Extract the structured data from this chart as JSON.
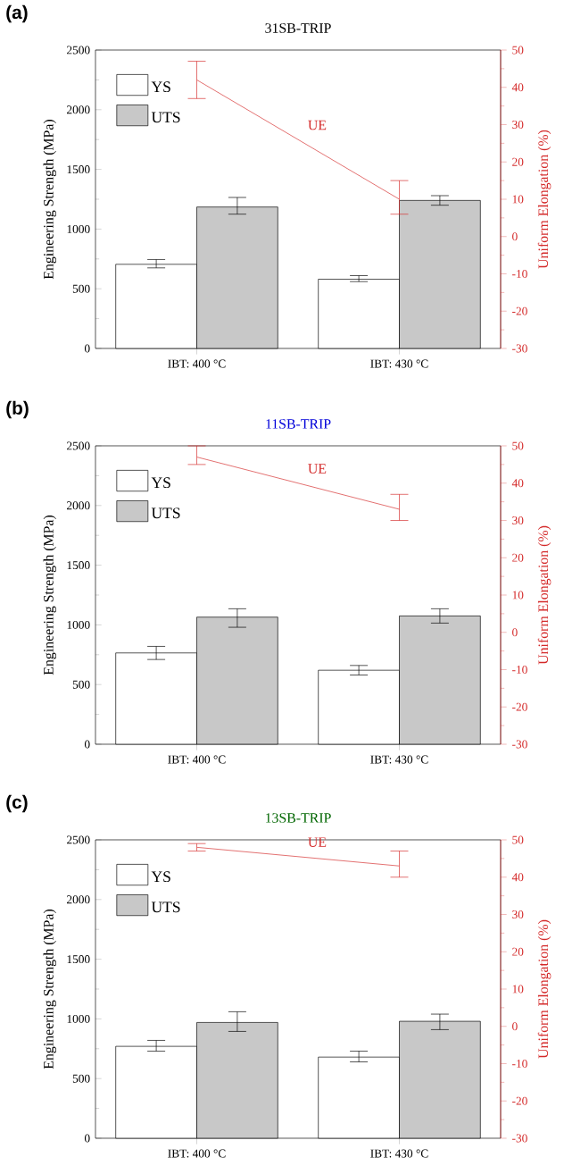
{
  "chart_data": [
    {
      "type": "bar",
      "title": "31SB-TRIP",
      "annotations": [
        "(a)"
      ],
      "ylabel": "Engineering Strength (MPa)",
      "y2label": "Uniform Elongation (%)",
      "categories": [
        "IBT: 400 °C",
        "IBT: 430 °C"
      ],
      "series": [
        {
          "name": "YS",
          "color": "#ffffff",
          "values": [
            705,
            580
          ],
          "errors": [
            [
              675,
              745
            ],
            [
              560,
              610
            ]
          ]
        },
        {
          "name": "UTS",
          "color": "#c8c8c8",
          "values": [
            1185,
            1240
          ],
          "errors": [
            [
              1125,
              1265
            ],
            [
              1200,
              1280
            ]
          ]
        },
        {
          "name": "UE",
          "type": "line",
          "axis": "y2",
          "color": "#d42a2a",
          "values": [
            42,
            10
          ],
          "errors": [
            [
              37,
              47
            ],
            [
              6,
              15
            ]
          ]
        }
      ],
      "ylim": [
        0,
        2500
      ],
      "yticks": [
        0,
        500,
        1000,
        1500,
        2000,
        2500
      ],
      "y2lim": [
        -30,
        50
      ],
      "y2ticks": [
        -30,
        -20,
        -10,
        0,
        10,
        20,
        30,
        40,
        50
      ],
      "legend": "top left"
    },
    {
      "type": "bar",
      "title": "11SB-TRIP",
      "annotations": [
        "(b)"
      ],
      "ylabel": "Engineering Strength (MPa)",
      "y2label": "Uniform Elongation (%)",
      "categories": [
        "IBT: 400 °C",
        "IBT: 430 °C"
      ],
      "series": [
        {
          "name": "YS",
          "color": "#ffffff",
          "values": [
            765,
            620
          ],
          "errors": [
            [
              710,
              820
            ],
            [
              580,
              660
            ]
          ]
        },
        {
          "name": "UTS",
          "color": "#c8c8c8",
          "values": [
            1065,
            1075
          ],
          "errors": [
            [
              980,
              1135
            ],
            [
              1015,
              1135
            ]
          ]
        },
        {
          "name": "UE",
          "type": "line",
          "axis": "y2",
          "color": "#d42a2a",
          "values": [
            47,
            33
          ],
          "errors": [
            [
              45,
              50
            ],
            [
              30,
              37
            ]
          ]
        }
      ],
      "ylim": [
        0,
        2500
      ],
      "yticks": [
        0,
        500,
        1000,
        1500,
        2000,
        2500
      ],
      "y2lim": [
        -30,
        50
      ],
      "y2ticks": [
        -30,
        -20,
        -10,
        0,
        10,
        20,
        30,
        40,
        50
      ],
      "legend": "top left"
    },
    {
      "type": "bar",
      "title": "13SB-TRIP",
      "annotations": [
        "(c)"
      ],
      "ylabel": "Engineering Strength (MPa)",
      "y2label": "Uniform Elongation (%)",
      "categories": [
        "IBT: 400 °C",
        "IBT: 430 °C"
      ],
      "series": [
        {
          "name": "YS",
          "color": "#ffffff",
          "values": [
            770,
            680
          ],
          "errors": [
            [
              730,
              820
            ],
            [
              640,
              730
            ]
          ]
        },
        {
          "name": "UTS",
          "color": "#c8c8c8",
          "values": [
            970,
            980
          ],
          "errors": [
            [
              895,
              1060
            ],
            [
              910,
              1040
            ]
          ]
        },
        {
          "name": "UE",
          "type": "line",
          "axis": "y2",
          "color": "#d42a2a",
          "values": [
            48,
            43
          ],
          "errors": [
            [
              47,
              49
            ],
            [
              40,
              47
            ]
          ]
        }
      ],
      "ylim": [
        0,
        2500
      ],
      "yticks": [
        0,
        500,
        1000,
        1500,
        2000,
        2500
      ],
      "y2lim": [
        -30,
        50
      ],
      "y2ticks": [
        -30,
        -20,
        -10,
        0,
        10,
        20,
        30,
        40,
        50
      ],
      "legend": "top left"
    }
  ]
}
